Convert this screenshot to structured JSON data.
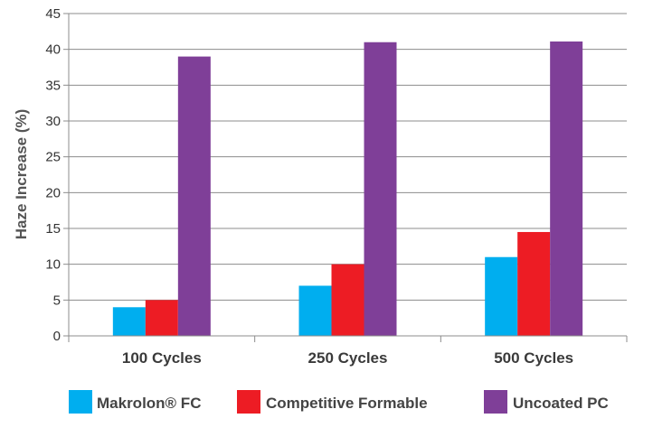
{
  "chart_data": {
    "type": "bar",
    "ylabel": "Haze Increase (%)",
    "ylim": [
      0,
      45
    ],
    "yticks": [
      0,
      5,
      10,
      15,
      20,
      25,
      30,
      35,
      40,
      45
    ],
    "categories": [
      "100 Cycles",
      "250 Cycles",
      "500 Cycles"
    ],
    "grid": true,
    "legend_position": "bottom",
    "series": [
      {
        "name": "Makrolon® FC",
        "color": "#00aeef",
        "values": [
          4,
          7,
          11
        ]
      },
      {
        "name": "Competitive Formable",
        "color": "#ed1c24",
        "values": [
          5,
          10,
          14.5
        ]
      },
      {
        "name": "Uncoated PC",
        "color": "#7f3f98",
        "values": [
          39,
          41,
          41.1
        ]
      }
    ]
  }
}
